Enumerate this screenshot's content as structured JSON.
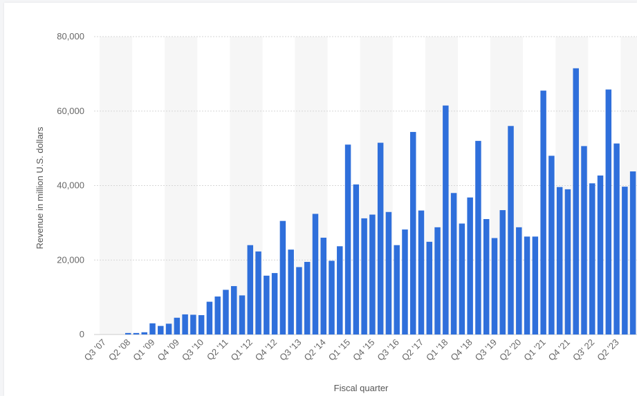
{
  "chart_data": {
    "type": "bar",
    "xlabel": "Fiscal quarter",
    "ylabel": "Revenue in million U.S. dollars",
    "ylim": [
      0,
      80000
    ],
    "yticks": [
      0,
      20000,
      40000,
      60000,
      80000
    ],
    "ytick_labels": [
      "0",
      "20,000",
      "40,000",
      "60,000",
      "80,000"
    ],
    "grid": true,
    "bar_color": "#2f6fdb",
    "band_color": "#f6f6f6",
    "categories": [
      "Q3 '07",
      "Q4 '07",
      "Q1 '08",
      "Q2 '08",
      "Q3 '08",
      "Q4 '08",
      "Q1 '09",
      "Q2 '09",
      "Q3 '09",
      "Q4 '09",
      "Q1 '10",
      "Q2 '10",
      "Q3 '10",
      "Q4 '10",
      "Q1 '11",
      "Q2 '11",
      "Q3 '11",
      "Q4 '11",
      "Q1 '12",
      "Q2 '12",
      "Q3 '12",
      "Q4 '12",
      "Q1 '13",
      "Q2 '13",
      "Q3 '13",
      "Q4 '13",
      "Q1 '14",
      "Q2 '14",
      "Q3 '14",
      "Q4 '14",
      "Q1 '15",
      "Q2 '15",
      "Q3 '15",
      "Q4 '15",
      "Q1 '16",
      "Q2 '16",
      "Q3 '16",
      "Q4 '16",
      "Q1 '17",
      "Q2 '17",
      "Q3 '17",
      "Q4 '17",
      "Q1 '18",
      "Q2 '18",
      "Q3 '18",
      "Q4 '18",
      "Q1 '19",
      "Q2 '19",
      "Q3 '19",
      "Q4 '19",
      "Q1 '20",
      "Q2 '20",
      "Q3 '20",
      "Q4 '20",
      "Q1 '21",
      "Q2 '21",
      "Q3 '21",
      "Q4 '21",
      "Q1 '22",
      "Q2 '22",
      "Q3' 22",
      "Q4 '22",
      "Q1 '23",
      "Q2 '23",
      "Q3 '23",
      "Q4 '23"
    ],
    "x_tick_labels": [
      "Q3 '07",
      "Q2 '08",
      "Q1 '09",
      "Q4 '09",
      "Q3 '10",
      "Q2 '11",
      "Q1 '12",
      "Q4 '12",
      "Q3 '13",
      "Q2 '14",
      "Q1 '15",
      "Q4 '15",
      "Q3 '16",
      "Q2 '17",
      "Q1 '18",
      "Q4 '18",
      "Q3 '19",
      "Q2 '20",
      "Q1 '21",
      "Q4 '21",
      "Q3' 22",
      "Q2 '23"
    ],
    "values": [
      0,
      0,
      0,
      400,
      400,
      600,
      3000,
      2300,
      2900,
      4500,
      5400,
      5300,
      5200,
      8800,
      10200,
      12000,
      13000,
      10500,
      24000,
      22300,
      15800,
      16500,
      30500,
      22800,
      18100,
      19500,
      32400,
      26000,
      19800,
      23700,
      51000,
      40300,
      31200,
      32200,
      51500,
      32900,
      24000,
      28200,
      54400,
      33300,
      24900,
      28800,
      61500,
      38000,
      29800,
      36800,
      52000,
      31000,
      25900,
      33400,
      56000,
      28800,
      26300,
      26300,
      65500,
      48000,
      39600,
      39000,
      71500,
      50600,
      40600,
      42700,
      65800,
      51300,
      39700,
      43800
    ]
  }
}
